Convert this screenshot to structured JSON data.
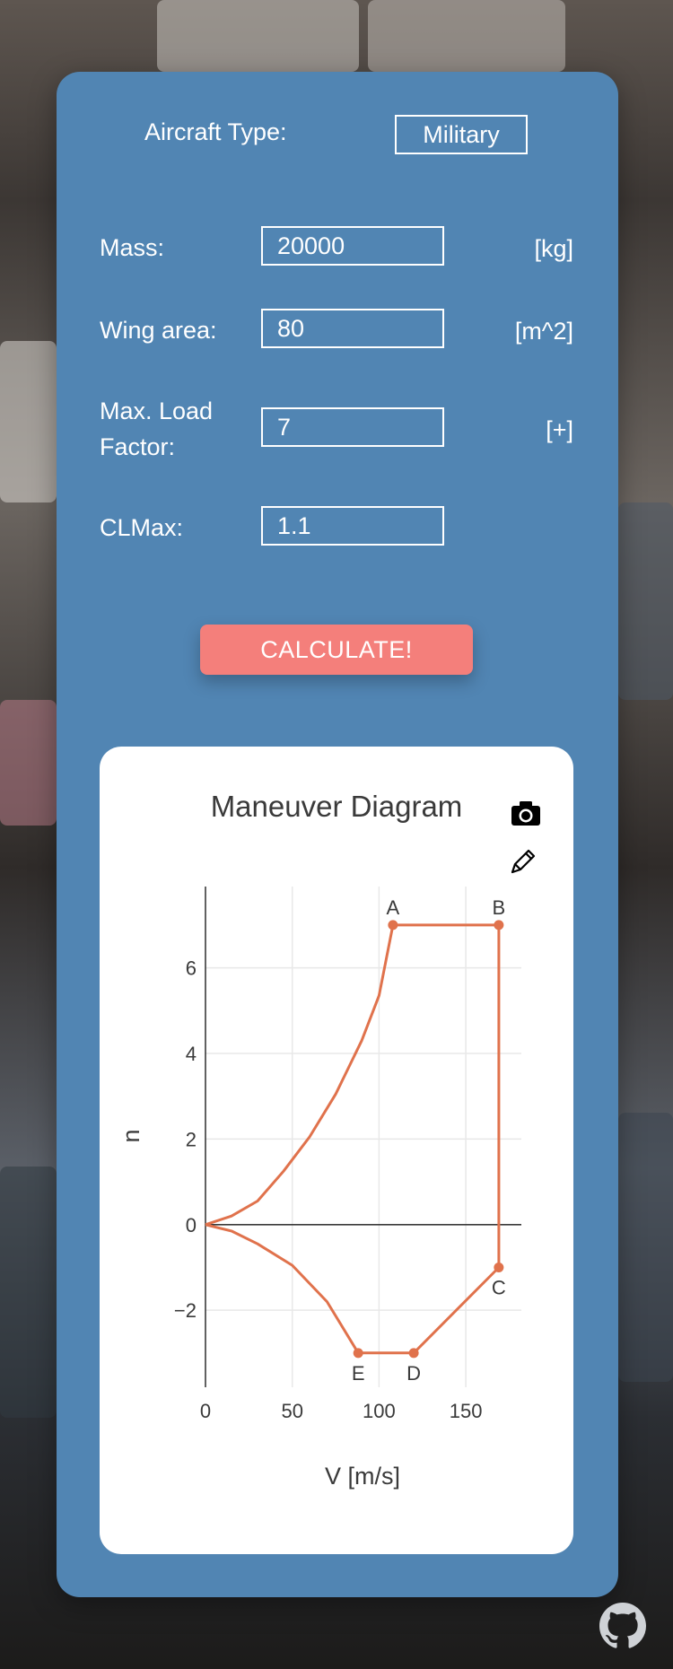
{
  "form": {
    "aircraft_type_label": "Aircraft Type:",
    "aircraft_type_value": "Military",
    "fields": [
      {
        "label": "Mass:",
        "value": "20000",
        "unit": "[kg]"
      },
      {
        "label": "Wing area:",
        "value": "80",
        "unit": "[m^2]"
      },
      {
        "label": "Max. Load Factor:",
        "value": "7",
        "unit": "[+]"
      },
      {
        "label": "CLMax:",
        "value": "1.1",
        "unit": ""
      }
    ],
    "calculate_label": "CALCULATE!"
  },
  "chart_data": {
    "type": "line",
    "title": "Maneuver Diagram",
    "xlabel": "V [m/s]",
    "ylabel": "n",
    "xlim": [
      0,
      182
    ],
    "ylim": [
      -3.8,
      7.9
    ],
    "x_ticks": [
      0,
      50,
      100,
      150
    ],
    "y_ticks": [
      -2,
      0,
      2,
      4,
      6
    ],
    "y_tick_labels": [
      "−2",
      "0",
      "2",
      "4",
      "6"
    ],
    "grid": true,
    "color": "#e0724c",
    "upper_curve": [
      [
        0,
        0
      ],
      [
        15,
        0.2
      ],
      [
        30,
        0.55
      ],
      [
        45,
        1.25
      ],
      [
        60,
        2.05
      ],
      [
        75,
        3.05
      ],
      [
        90,
        4.3
      ],
      [
        100,
        5.35
      ],
      [
        108,
        7.0
      ]
    ],
    "boundary": [
      [
        108,
        7.0
      ],
      [
        169,
        7.0
      ],
      [
        169,
        -1.0
      ],
      [
        120,
        -3.0
      ],
      [
        88,
        -3.0
      ]
    ],
    "lower_curve": [
      [
        88,
        -3.0
      ],
      [
        70,
        -1.8
      ],
      [
        50,
        -0.95
      ],
      [
        30,
        -0.45
      ],
      [
        15,
        -0.15
      ],
      [
        0,
        0
      ]
    ],
    "points": [
      {
        "label": "A",
        "x": 108,
        "y": 7.0,
        "label_pos": "above"
      },
      {
        "label": "B",
        "x": 169,
        "y": 7.0,
        "label_pos": "above"
      },
      {
        "label": "C",
        "x": 169,
        "y": -1.0,
        "label_pos": "below"
      },
      {
        "label": "D",
        "x": 120,
        "y": -3.0,
        "label_pos": "below"
      },
      {
        "label": "E",
        "x": 88,
        "y": -3.0,
        "label_pos": "below"
      }
    ]
  },
  "icons": {
    "camera": "camera-icon",
    "pencil": "pencil-icon",
    "github": "github-icon"
  }
}
